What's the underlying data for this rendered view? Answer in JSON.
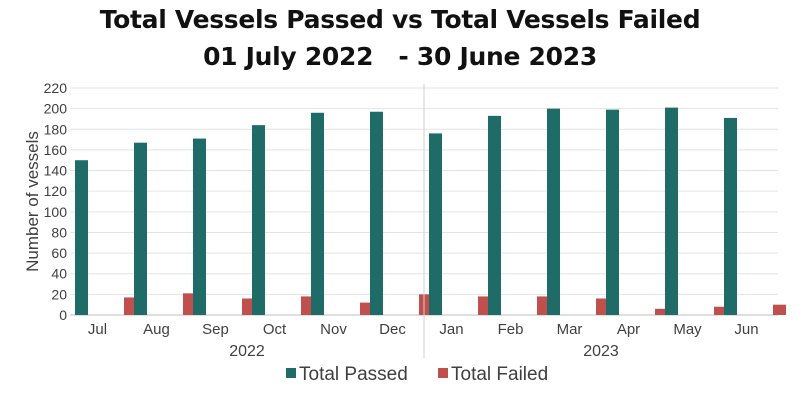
{
  "chart_data": {
    "type": "bar",
    "title_line1": "Total Vessels Passed vs Total Vessels Failed",
    "title_line2": "01 July 2022   - 30 June 2023",
    "ylabel": "Number of vessels",
    "ylim": [
      0,
      220
    ],
    "yticks": [
      0,
      20,
      40,
      60,
      80,
      100,
      120,
      140,
      160,
      180,
      200,
      220
    ],
    "grid": true,
    "legend_position": "bottom",
    "categories": [
      "Jul",
      "Aug",
      "Sep",
      "Oct",
      "Nov",
      "Dec",
      "Jan",
      "Feb",
      "Mar",
      "Apr",
      "May",
      "Jun"
    ],
    "groups": [
      {
        "label": "2022",
        "categories": [
          "Jul",
          "Aug",
          "Sep",
          "Oct",
          "Nov",
          "Dec"
        ]
      },
      {
        "label": "2023",
        "categories": [
          "Jan",
          "Feb",
          "Mar",
          "Apr",
          "May",
          "Jun"
        ]
      }
    ],
    "series": [
      {
        "name": "Total Passed",
        "color": "#1e6b67",
        "values": [
          150,
          167,
          171,
          184,
          196,
          197,
          176,
          193,
          200,
          199,
          201,
          191
        ]
      },
      {
        "name": "Total Failed",
        "color": "#c0504d",
        "values": [
          17,
          21,
          16,
          18,
          12,
          20,
          18,
          18,
          16,
          6,
          8,
          10
        ]
      }
    ]
  }
}
